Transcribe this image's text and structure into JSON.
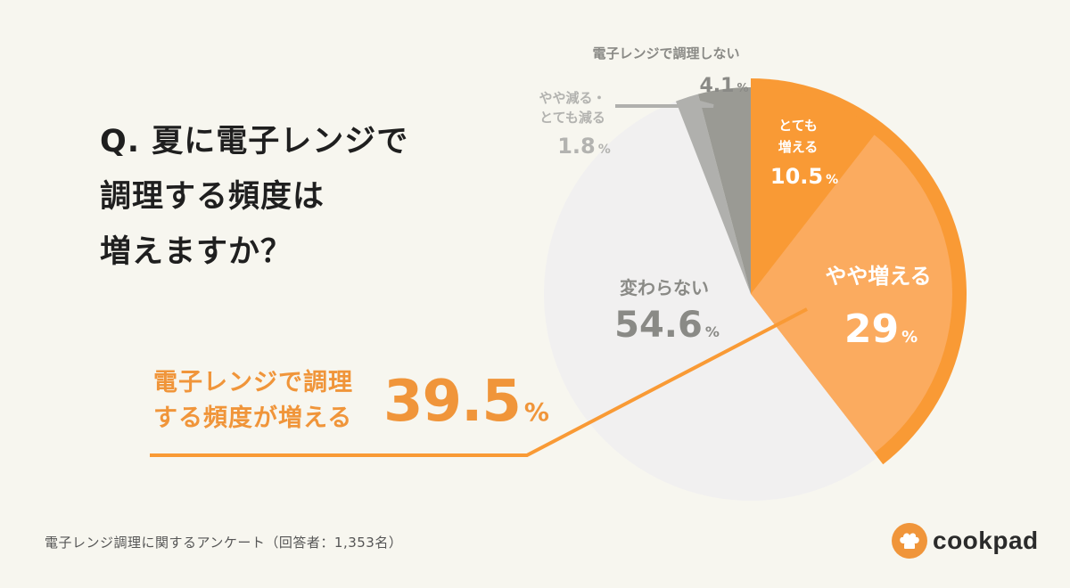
{
  "question": {
    "line1": "Q. 夏に電子レンジで",
    "line2": "調理する頻度は",
    "line3": "増えますか？"
  },
  "summary": {
    "label_line1": "電子レンジで調理",
    "label_line2": "する頻度が増える",
    "value": "39.5",
    "unit": "%"
  },
  "footnote": "電子レンジ調理に関するアンケート（回答者：1,353名）",
  "brand": {
    "name": "cookpad",
    "icon": "chef-hat-icon"
  },
  "colors": {
    "background": "#f7f6ef",
    "accent": "#f0953a",
    "slice_increase": "#f99a35",
    "slice_slight_increase": "#fbab5f",
    "slice_unchanged": "#f1f0f0",
    "slice_slight_decrease": "#b0b0ad",
    "slice_no_microwave": "#9a9a94",
    "label_gray": "#8a8a86",
    "label_light_gray": "#b3b3b0"
  },
  "chart_data": {
    "type": "pie",
    "title": "Q. 夏に電子レンジで調理する頻度は増えますか？",
    "unit": "%",
    "start": "12 o'clock, clockwise",
    "slices": [
      {
        "label_lines": [
          "とても",
          "増える"
        ],
        "value": 10.5,
        "value_text": "10.5",
        "color": "#f99a35",
        "text_color": "#ffffff",
        "label_placement": "inside"
      },
      {
        "label_lines": [
          "やや増える"
        ],
        "value": 29,
        "value_text": "29",
        "color": "#fbab5f",
        "text_color": "#ffffff",
        "label_placement": "inside"
      },
      {
        "label_lines": [
          "変わらない"
        ],
        "value": 54.6,
        "value_text": "54.6",
        "color": "#f1f0f0",
        "text_color": "#8a8a86",
        "label_placement": "inside"
      },
      {
        "label_lines": [
          "やや減る・",
          "とても減る"
        ],
        "value": 1.8,
        "value_text": "1.8",
        "color": "#b0b0ad",
        "text_color": "#b3b3b0",
        "label_placement": "outside-left"
      },
      {
        "label_lines": [
          "電子レンジで調理しない"
        ],
        "value": 4.1,
        "value_text": "4.1",
        "color": "#9a9a94",
        "text_color": "#8a8a86",
        "label_placement": "outside-top"
      }
    ],
    "highlight": {
      "label": "電子レンジで調理する頻度が増える",
      "value": 39.5,
      "includes": [
        "とても増える",
        "やや増える"
      ]
    }
  }
}
